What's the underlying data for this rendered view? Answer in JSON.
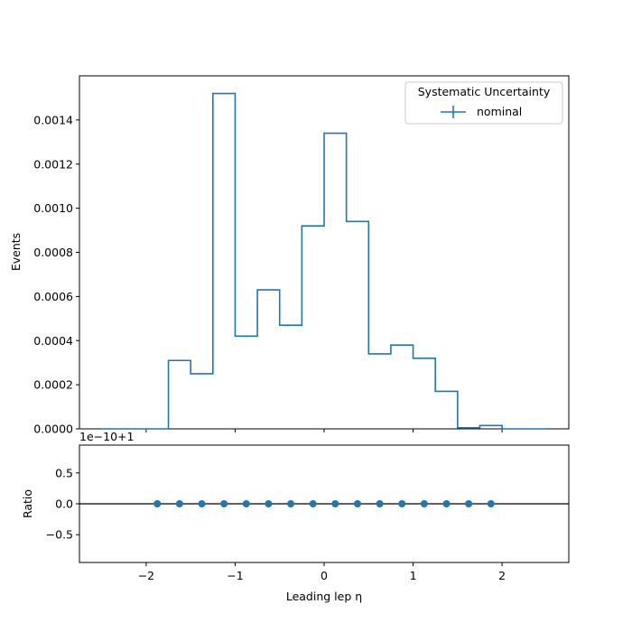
{
  "colors": {
    "series": "#1f77b4",
    "axes": "#000000",
    "legend_border": "#cccccc"
  },
  "chart_data": [
    {
      "type": "histogram-step",
      "panel": "main",
      "ylabel": "Events",
      "xlim": [
        -2.75,
        2.75
      ],
      "ylim": [
        0,
        0.0016
      ],
      "yticks": [
        0.0,
        0.0002,
        0.0004,
        0.0006,
        0.0008,
        0.001,
        0.0012,
        0.0014
      ],
      "ytick_labels": [
        "0.0000",
        "0.0002",
        "0.0004",
        "0.0006",
        "0.0008",
        "0.0010",
        "0.0012",
        "0.0014"
      ],
      "grid": false,
      "legend": {
        "title": "Systematic Uncertainty",
        "placement": "top-right",
        "entries": [
          "nominal"
        ]
      },
      "series": [
        {
          "name": "nominal",
          "bin_edges": [
            -2.5,
            -2.25,
            -2.0,
            -1.75,
            -1.5,
            -1.25,
            -1.0,
            -0.75,
            -0.5,
            -0.25,
            0.0,
            0.25,
            0.5,
            0.75,
            1.0,
            1.25,
            1.5,
            1.75,
            2.0,
            2.25,
            2.5
          ],
          "values": [
            0.0,
            0.0,
            0.0,
            0.00031,
            0.00025,
            0.00152,
            0.00042,
            0.00063,
            0.00047,
            0.00092,
            0.00134,
            0.00094,
            0.00034,
            0.00038,
            0.00032,
            0.00017,
            5e-06,
            1.5e-05,
            0.0,
            0.0
          ]
        }
      ]
    },
    {
      "type": "scatter",
      "panel": "ratio",
      "xlabel": "Leading lep η",
      "ylabel": "Ratio",
      "offset_text": "1e−10+1",
      "xlim": [
        -2.75,
        2.75
      ],
      "ylim": [
        -0.95,
        0.95
      ],
      "xticks": [
        -2,
        -1,
        0,
        1,
        2
      ],
      "xtick_labels": [
        "−2",
        "−1",
        "0",
        "1",
        "2"
      ],
      "yticks": [
        -0.5,
        0.0,
        0.5
      ],
      "ytick_labels": [
        "−0.5",
        "0.0",
        "0.5"
      ],
      "reference_line": 0.0,
      "series": [
        {
          "x": [
            -1.875,
            -1.625,
            -1.375,
            -1.125,
            -0.875,
            -0.625,
            -0.375,
            -0.125,
            0.125,
            0.375,
            0.625,
            0.875,
            1.125,
            1.375,
            1.625,
            1.875
          ],
          "y": [
            0,
            0,
            0,
            0,
            0,
            0,
            0,
            0,
            0,
            0,
            0,
            0,
            0,
            0,
            0,
            0
          ]
        }
      ]
    }
  ]
}
